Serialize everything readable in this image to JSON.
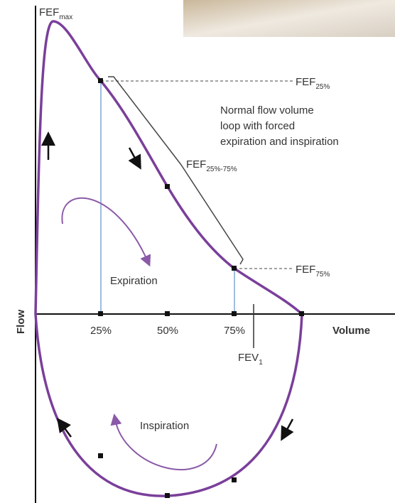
{
  "labels": {
    "fef_max": {
      "main": "FEF",
      "sub": "max"
    },
    "fef_25": {
      "main": "FEF",
      "sub": "25%"
    },
    "description": [
      "Normal flow volume",
      "loop with forced",
      "expiration and inspiration"
    ],
    "fef_25_75": {
      "main": "FEF",
      "sub": "25%-75%"
    },
    "expiration": "Expiration",
    "fef_75": {
      "main": "FEF",
      "sub": "75%"
    },
    "y_axis": "Flow",
    "x_ticks": [
      "25%",
      "50%",
      "75%"
    ],
    "x_axis": "Volume",
    "fev1": {
      "main": "FEV",
      "sub": "1"
    },
    "inspiration": "Inspiration"
  }
}
